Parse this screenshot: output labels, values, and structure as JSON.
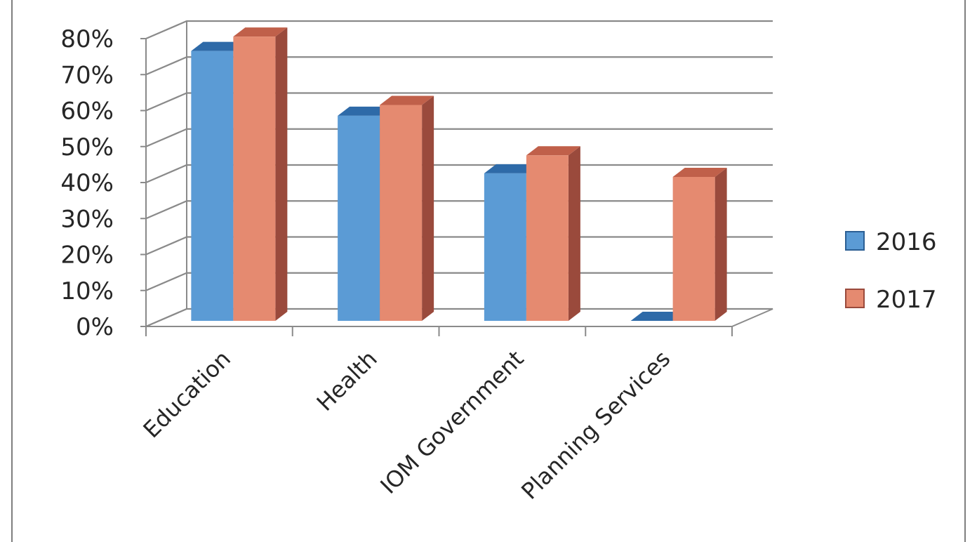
{
  "chart_data": {
    "type": "bar",
    "categories": [
      "Education",
      "Health",
      "IOM Government",
      "Planning Services"
    ],
    "series": [
      {
        "name": "2016",
        "values": [
          75,
          57,
          41,
          0
        ]
      },
      {
        "name": "2017",
        "values": [
          79,
          60,
          46,
          40
        ]
      }
    ],
    "yticks": [
      "0%",
      "10%",
      "20%",
      "30%",
      "40%",
      "50%",
      "60%",
      "70%",
      "80%"
    ],
    "ylim": [
      0,
      80
    ],
    "unit": "%",
    "grid": true,
    "legend_position": "right",
    "colors": {
      "2016": {
        "front": "#5b9bd5",
        "top": "#2e6aa8",
        "side": "#2c5f94"
      },
      "2017": {
        "front": "#e58a70",
        "top": "#c0604a",
        "side": "#9a4a3c"
      }
    }
  }
}
